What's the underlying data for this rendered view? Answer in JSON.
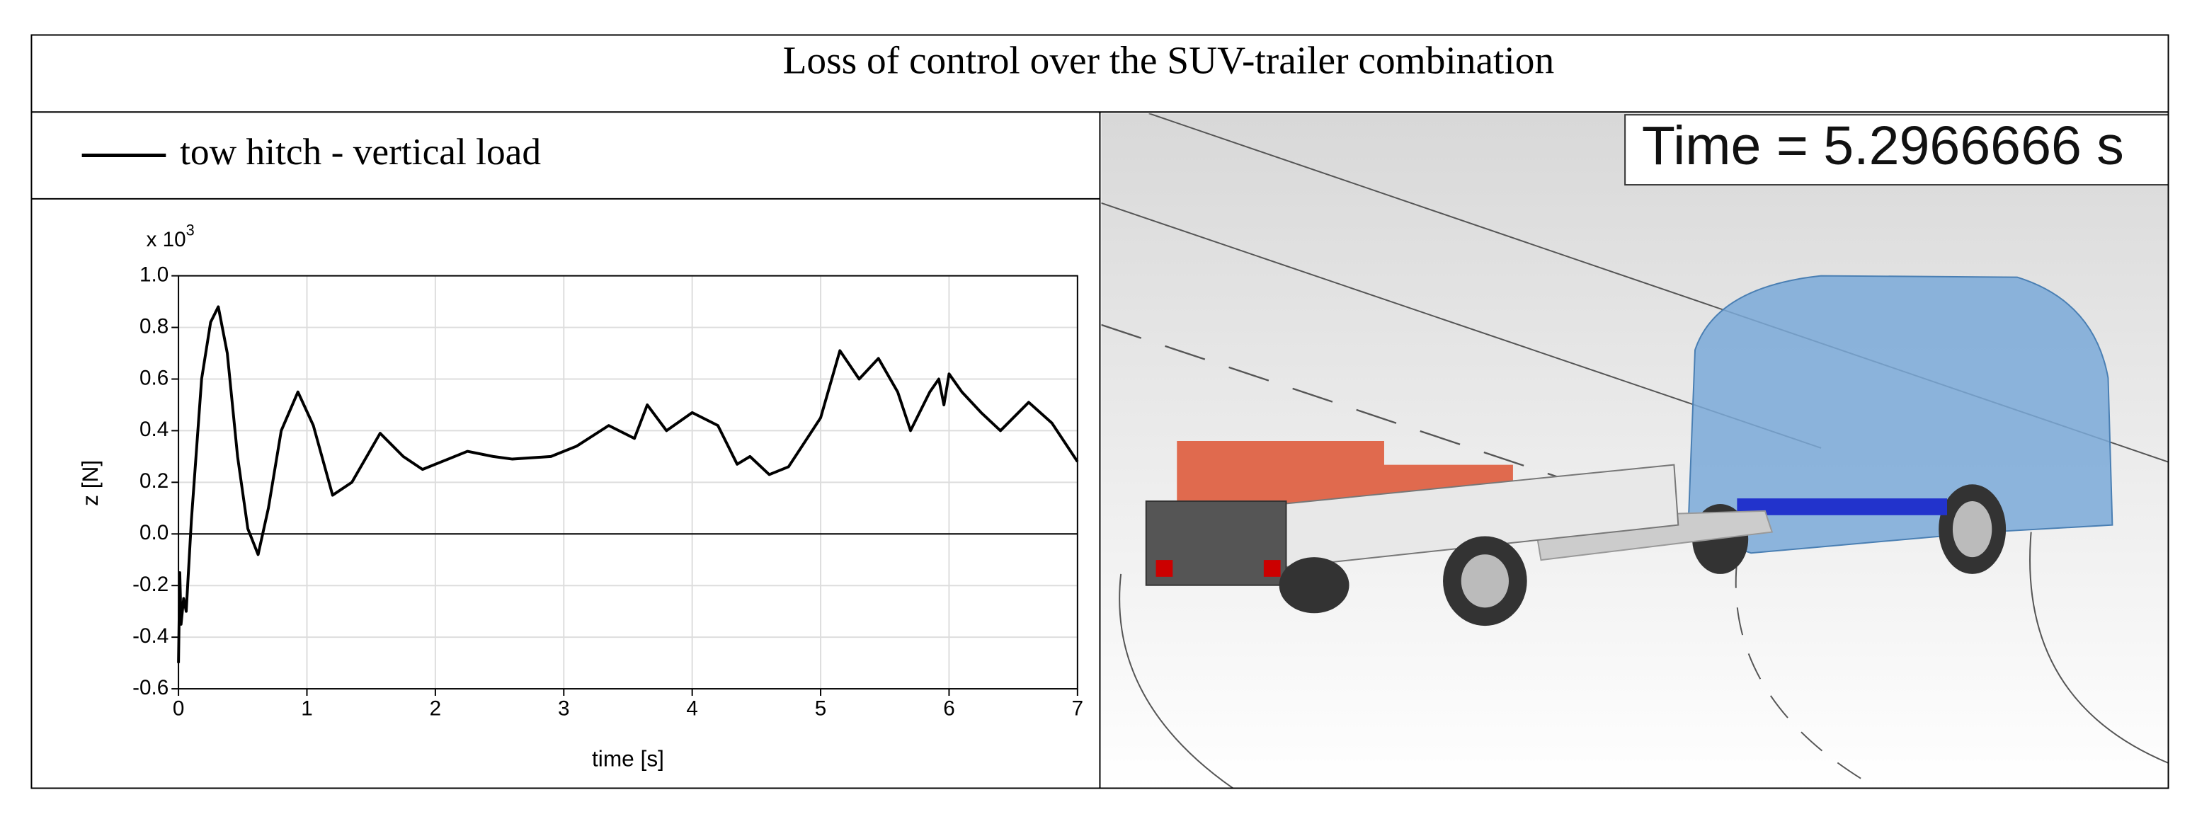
{
  "figure_title": "Loss of control over the SUV-trailer combination",
  "animation_label": "Time = 5.2966666 s",
  "chart_data": {
    "type": "line",
    "x_label": "time [s]",
    "y_label": "z [N]",
    "y_scale_label": {
      "base": "x 10",
      "exponent": "3"
    },
    "x": [
      0,
      0.01,
      0.02,
      0.04,
      0.06,
      0.1,
      0.18,
      0.25,
      0.31,
      0.38,
      0.46,
      0.54,
      0.62,
      0.7,
      0.8,
      0.93,
      1.05,
      1.2,
      1.35,
      1.57,
      1.75,
      1.9,
      2.05,
      2.25,
      2.45,
      2.6,
      2.9,
      3.1,
      3.35,
      3.55,
      3.65,
      3.8,
      4.0,
      4.2,
      4.35,
      4.45,
      4.6,
      4.75,
      5.0,
      5.15,
      5.3,
      5.45,
      5.6,
      5.7,
      5.85,
      5.92,
      5.96,
      6.0,
      6.1,
      6.25,
      6.4,
      6.62,
      6.8,
      7.0
    ],
    "series": [
      {
        "name": "tow hitch - vertical load",
        "color": "#000000",
        "values": [
          -0.5,
          -0.15,
          -0.35,
          -0.25,
          -0.3,
          0.05,
          0.6,
          0.82,
          0.88,
          0.7,
          0.3,
          0.02,
          -0.08,
          0.1,
          0.4,
          0.55,
          0.42,
          0.15,
          0.2,
          0.39,
          0.3,
          0.25,
          0.28,
          0.32,
          0.3,
          0.29,
          0.3,
          0.34,
          0.42,
          0.37,
          0.5,
          0.4,
          0.47,
          0.42,
          0.27,
          0.3,
          0.23,
          0.26,
          0.45,
          0.71,
          0.6,
          0.68,
          0.55,
          0.4,
          0.55,
          0.6,
          0.5,
          0.62,
          0.55,
          0.47,
          0.4,
          0.51,
          0.43,
          0.28
        ]
      }
    ],
    "xlim": [
      0,
      7
    ],
    "ylim": [
      -0.6,
      1.0
    ],
    "xticks": [
      0,
      1,
      2,
      3,
      4,
      5,
      6,
      7
    ],
    "yticks": [
      -0.6,
      -0.4,
      -0.2,
      {
        "value": 0,
        "label": "0.0"
      },
      0.2,
      0.4,
      0.6,
      0.8,
      {
        "value": 1,
        "label": "1.0"
      }
    ],
    "grid": true
  }
}
